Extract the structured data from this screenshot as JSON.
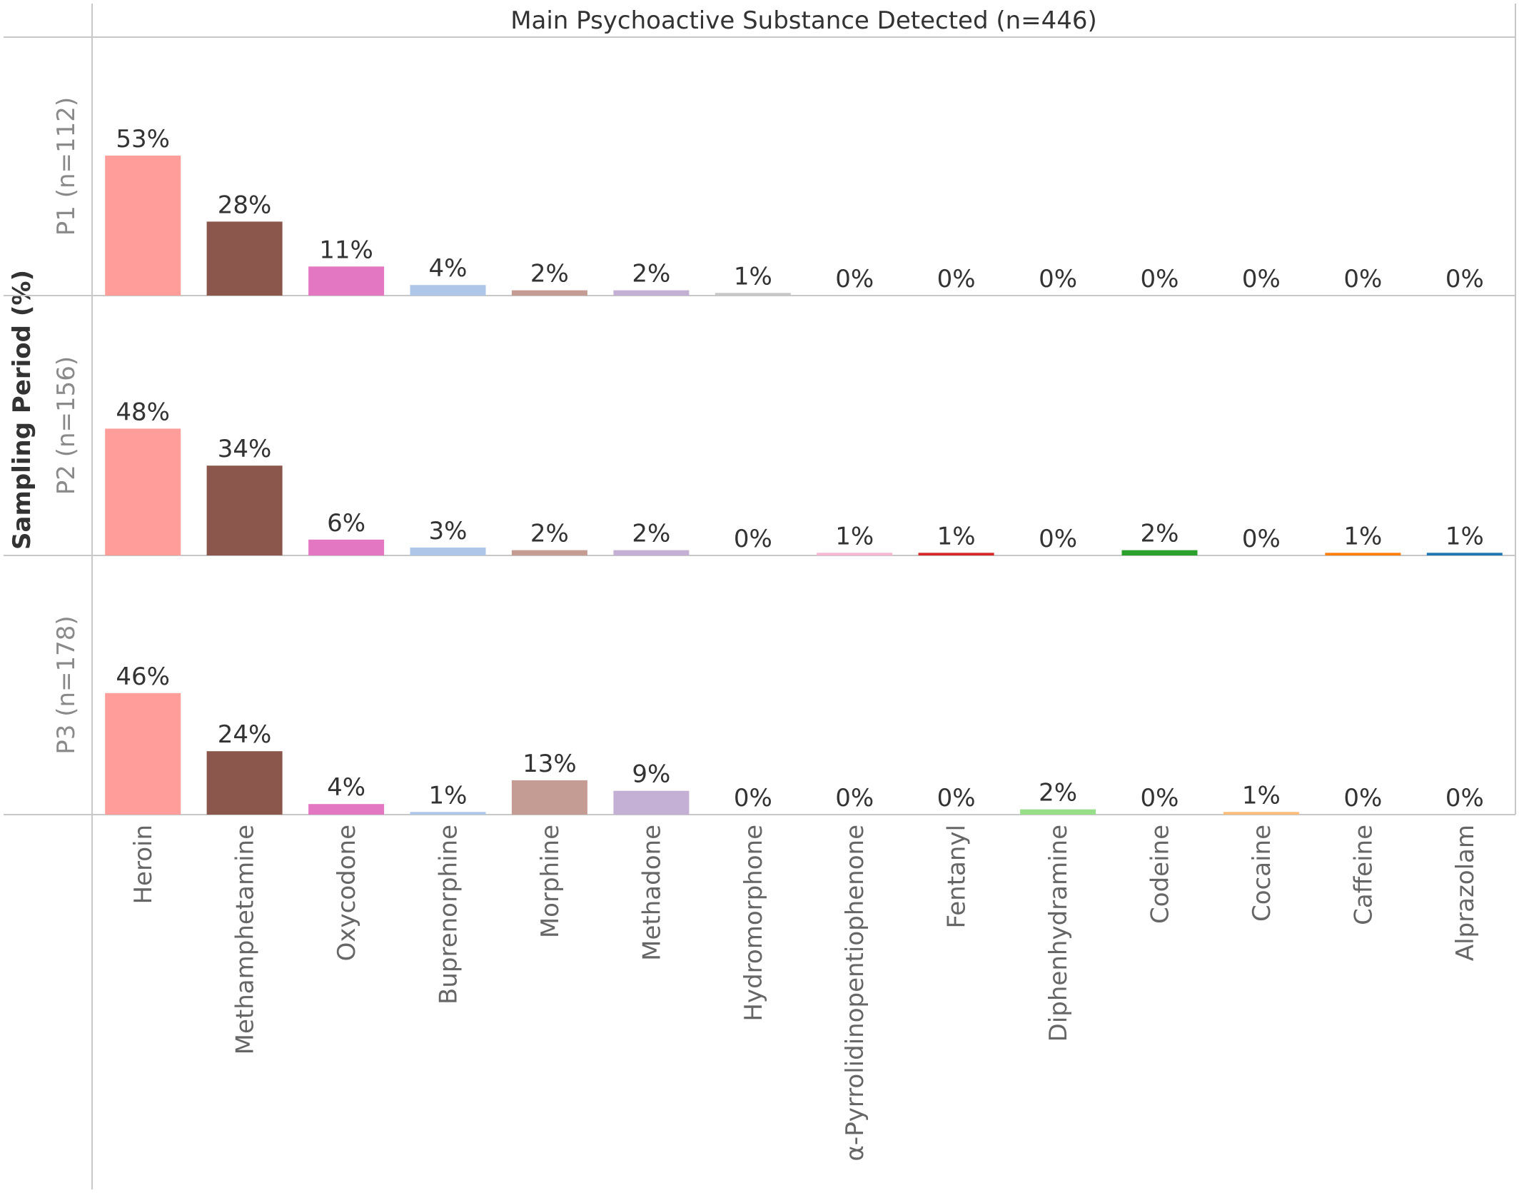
{
  "chart_data": {
    "type": "bar",
    "title": "Main Psychoactive Substance Detected (n=446)",
    "ylabel": "Sampling Period (%)",
    "ylim": [
      0,
      60
    ],
    "grid": false,
    "legend": "none",
    "categories": [
      "Heroin",
      "Methamphetamine",
      "Oxycodone",
      "Buprenorphine",
      "Morphine",
      "Methadone",
      "Hydromorphone",
      "α-Pyrrolidinopentiophenone",
      "Fentanyl",
      "Diphenhydramine",
      "Codeine",
      "Cocaine",
      "Caffeine",
      "Alprazolam"
    ],
    "colors": [
      "#ff9d9a",
      "#8b564b",
      "#e477c1",
      "#aec7e8",
      "#c49c94",
      "#c5b0d5",
      "#c7c7c7",
      "#f7b6d2",
      "#d62728",
      "#98df8a",
      "#2ca02c",
      "#ffbb78",
      "#ff7f0e",
      "#1f77b4"
    ],
    "series": [
      {
        "name": "P1 (n=112)",
        "values": [
          53,
          28,
          11,
          4,
          2,
          2,
          1,
          0,
          0,
          0,
          0,
          0,
          0,
          0
        ],
        "labels": [
          "53%",
          "28%",
          "11%",
          "4%",
          "2%",
          "2%",
          "1%",
          "0%",
          "0%",
          "0%",
          "0%",
          "0%",
          "0%",
          "0%"
        ]
      },
      {
        "name": "P2 (n=156)",
        "values": [
          48,
          34,
          6,
          3,
          2,
          2,
          0,
          1,
          1,
          0,
          2,
          0,
          1,
          1
        ],
        "labels": [
          "48%",
          "34%",
          "6%",
          "3%",
          "2%",
          "2%",
          "0%",
          "1%",
          "1%",
          "0%",
          "2%",
          "0%",
          "1%",
          "1%"
        ]
      },
      {
        "name": "P3 (n=178)",
        "values": [
          46,
          24,
          4,
          1,
          13,
          9,
          0,
          0,
          0,
          2,
          0,
          1,
          0,
          0
        ],
        "labels": [
          "46%",
          "24%",
          "4%",
          "1%",
          "13%",
          "9%",
          "0%",
          "0%",
          "0%",
          "2%",
          "0%",
          "1%",
          "0%",
          "0%"
        ]
      }
    ]
  }
}
